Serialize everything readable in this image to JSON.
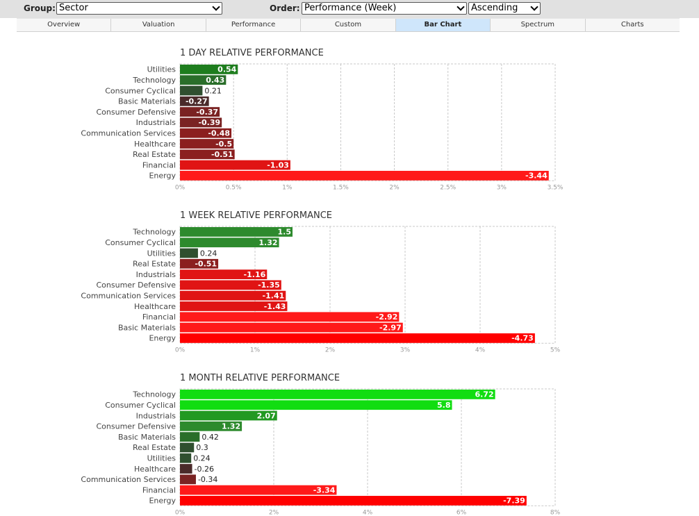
{
  "controls": {
    "group_label": "Group:",
    "group_value": "Sector",
    "order_label": "Order:",
    "order_value": "Performance (Week)",
    "direction_value": "Ascending"
  },
  "tabs": [
    {
      "label": "Overview",
      "active": false
    },
    {
      "label": "Valuation",
      "active": false
    },
    {
      "label": "Performance",
      "active": false
    },
    {
      "label": "Custom",
      "active": false
    },
    {
      "label": "Bar Chart",
      "active": true
    },
    {
      "label": "Spectrum",
      "active": false
    },
    {
      "label": "Charts",
      "active": false
    }
  ],
  "chart_data": [
    {
      "type": "bar",
      "orientation": "horizontal",
      "title": "1 DAY RELATIVE PERFORMANCE",
      "categories": [
        "Utilities",
        "Technology",
        "Consumer Cyclical",
        "Basic Materials",
        "Consumer Defensive",
        "Industrials",
        "Communication Services",
        "Healthcare",
        "Real Estate",
        "Financial",
        "Energy"
      ],
      "values": [
        0.54,
        0.43,
        0.21,
        -0.27,
        -0.37,
        -0.39,
        -0.48,
        -0.5,
        -0.51,
        -1.03,
        -3.44
      ],
      "value_labels": [
        "0.54",
        "0.43",
        "0.21",
        "-0.27",
        "-0.37",
        "-0.39",
        "-0.48",
        "-0.5",
        "-0.51",
        "-1.03",
        "-3.44"
      ],
      "xlim": [
        0,
        3.5
      ],
      "tick_labels": [
        "0%",
        "0.5%",
        "1%",
        "1.5%",
        "2%",
        "2.5%",
        "3%",
        "3.5%"
      ],
      "grid": true
    },
    {
      "type": "bar",
      "orientation": "horizontal",
      "title": "1 WEEK RELATIVE PERFORMANCE",
      "categories": [
        "Technology",
        "Consumer Cyclical",
        "Utilities",
        "Real Estate",
        "Industrials",
        "Consumer Defensive",
        "Communication Services",
        "Healthcare",
        "Financial",
        "Basic Materials",
        "Energy"
      ],
      "values": [
        1.5,
        1.32,
        0.24,
        -0.51,
        -1.16,
        -1.35,
        -1.41,
        -1.43,
        -2.92,
        -2.97,
        -4.73
      ],
      "value_labels": [
        "1.5",
        "1.32",
        "0.24",
        "-0.51",
        "-1.16",
        "-1.35",
        "-1.41",
        "-1.43",
        "-2.92",
        "-2.97",
        "-4.73"
      ],
      "xlim": [
        0,
        5
      ],
      "tick_labels": [
        "0%",
        "1%",
        "2%",
        "3%",
        "4%",
        "5%"
      ],
      "grid": true
    },
    {
      "type": "bar",
      "orientation": "horizontal",
      "title": "1 MONTH RELATIVE PERFORMANCE",
      "categories": [
        "Technology",
        "Consumer Cyclical",
        "Industrials",
        "Consumer Defensive",
        "Basic Materials",
        "Real Estate",
        "Utilities",
        "Healthcare",
        "Communication Services",
        "Financial",
        "Energy"
      ],
      "values": [
        6.72,
        5.8,
        2.07,
        1.32,
        0.42,
        0.3,
        0.24,
        -0.26,
        -0.34,
        -3.34,
        -7.39
      ],
      "value_labels": [
        "6.72",
        "5.8",
        "2.07",
        "1.32",
        "0.42",
        "0.3",
        "0.24",
        "-0.26",
        "-0.34",
        "-3.34",
        "-7.39"
      ],
      "xlim": [
        0,
        8
      ],
      "tick_labels": [
        "0%",
        "2%",
        "4%",
        "6%",
        "8%"
      ],
      "grid": true
    }
  ]
}
